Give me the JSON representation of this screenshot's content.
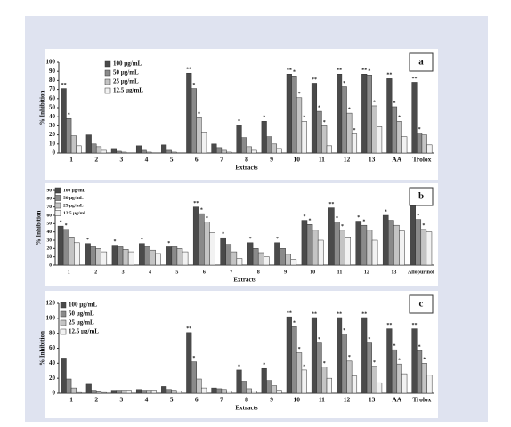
{
  "chart_data": [
    {
      "type": "bar",
      "panel_label": "a",
      "x_label": "Extracts",
      "y_label": "% Inhibition",
      "categories": [
        "1",
        "2",
        "3",
        "4",
        "5",
        "6",
        "7",
        "8",
        "9",
        "10",
        "11",
        "12",
        "13",
        "AA",
        "Trolox"
      ],
      "ylim": [
        0,
        100
      ],
      "yticks": [
        0,
        10,
        20,
        30,
        40,
        50,
        60,
        70,
        80,
        90,
        100
      ],
      "series": [
        {
          "name": "100 µg/mL",
          "color": "#4a4a4a",
          "values": [
            71,
            20,
            5,
            8,
            9,
            88,
            10,
            31,
            35,
            87,
            77,
            87,
            87,
            82,
            78
          ],
          "significance": [
            "**",
            null,
            null,
            null,
            null,
            "**",
            null,
            "*",
            "*",
            "**",
            "**",
            "**",
            "**",
            "**",
            "**"
          ]
        },
        {
          "name": "50 µg/mL",
          "color": "#8a8a8a",
          "values": [
            38,
            10,
            2,
            3,
            3,
            71,
            6,
            17,
            18,
            85,
            46,
            73,
            86,
            51,
            22
          ],
          "significance": [
            "*",
            null,
            null,
            null,
            null,
            "*",
            null,
            null,
            null,
            "*",
            "*",
            "*",
            "*",
            "*",
            "*"
          ]
        },
        {
          "name": "25 µg/mL",
          "color": "#c4c4c4",
          "values": [
            19,
            7,
            1,
            1,
            1,
            39,
            3,
            7,
            10,
            61,
            30,
            44,
            52,
            35,
            20
          ],
          "significance": [
            null,
            null,
            null,
            null,
            null,
            "*",
            null,
            null,
            null,
            "*",
            "*",
            "*",
            "*",
            "*",
            null
          ]
        },
        {
          "name": "12.5 µg/mL",
          "color": "#f2f2f2",
          "values": [
            8,
            3,
            0,
            0,
            0,
            23,
            1,
            3,
            5,
            35,
            8,
            21,
            29,
            18,
            9
          ],
          "significance": [
            null,
            null,
            null,
            null,
            null,
            null,
            null,
            null,
            null,
            "*",
            null,
            "*",
            null,
            null,
            null
          ]
        }
      ]
    },
    {
      "type": "bar",
      "panel_label": "b",
      "x_label": "Extracts",
      "y_label": "% Inhibition",
      "categories": [
        "1",
        "2",
        "3",
        "4",
        "5",
        "6",
        "7",
        "8",
        "9",
        "10",
        "11",
        "12",
        "13",
        "Allopurinol"
      ],
      "ylim": [
        0,
        90
      ],
      "yticks": [
        0,
        10,
        20,
        30,
        40,
        50,
        60,
        70,
        80,
        90
      ],
      "series": [
        {
          "name": "100 µg/mL",
          "color": "#4a4a4a",
          "values": [
            47,
            26,
            24,
            26,
            22,
            70,
            33,
            27,
            27,
            54,
            69,
            53,
            60,
            74
          ],
          "significance": [
            "*",
            "*",
            "*",
            "*",
            "*",
            "**",
            "*",
            "*",
            "*",
            "*",
            "**",
            "*",
            "*",
            "**"
          ]
        },
        {
          "name": "50 µg/mL",
          "color": "#8a8a8a",
          "values": [
            43,
            22,
            22,
            22,
            22,
            62,
            25,
            20,
            20,
            49,
            52,
            48,
            54,
            55
          ],
          "significance": [
            "*",
            null,
            null,
            null,
            null,
            "*",
            null,
            null,
            null,
            "*",
            "*",
            "*",
            null,
            "*"
          ]
        },
        {
          "name": "25 µg/mL",
          "color": "#c4c4c4",
          "values": [
            34,
            20,
            19,
            18,
            20,
            52,
            16,
            15,
            13,
            42,
            42,
            42,
            48,
            43
          ],
          "significance": [
            null,
            null,
            null,
            null,
            null,
            "*",
            null,
            null,
            null,
            null,
            "*",
            null,
            null,
            "*"
          ]
        },
        {
          "name": "12.5 µg/mL",
          "color": "#f2f2f2",
          "values": [
            27,
            16,
            16,
            14,
            16,
            39,
            8,
            10,
            7,
            30,
            34,
            30,
            41,
            40
          ],
          "significance": [
            null,
            null,
            null,
            null,
            null,
            null,
            null,
            null,
            null,
            null,
            null,
            null,
            null,
            null
          ]
        }
      ]
    },
    {
      "type": "bar",
      "panel_label": "c",
      "x_label": "Extracts",
      "y_label": "% Inhibition",
      "categories": [
        "1",
        "2",
        "3",
        "4",
        "5",
        "6",
        "7",
        "8",
        "9",
        "10",
        "11",
        "12",
        "13",
        "AA",
        "Trolox"
      ],
      "ylim": [
        0,
        120
      ],
      "yticks": [
        0,
        20,
        40,
        60,
        80,
        100,
        120
      ],
      "series": [
        {
          "name": "100 µg/mL",
          "color": "#4a4a4a",
          "values": [
            47,
            12,
            4,
            5,
            9,
            81,
            7,
            31,
            33,
            102,
            101,
            101,
            101,
            86,
            86
          ],
          "significance": [
            null,
            null,
            null,
            null,
            null,
            "**",
            null,
            "*",
            "*",
            "**",
            "**",
            "**",
            "**",
            "**",
            "**"
          ]
        },
        {
          "name": "50 µg/mL",
          "color": "#8a8a8a",
          "values": [
            19,
            4,
            4,
            4,
            5,
            42,
            6,
            16,
            17,
            89,
            67,
            79,
            67,
            58,
            57
          ],
          "significance": [
            null,
            null,
            null,
            null,
            null,
            "*",
            null,
            null,
            null,
            "*",
            "*",
            "*",
            "*",
            "*",
            "*"
          ]
        },
        {
          "name": "25 µg/mL",
          "color": "#c4c4c4",
          "values": [
            7,
            2,
            4,
            4,
            4,
            19,
            5,
            6,
            10,
            54,
            35,
            43,
            36,
            39,
            40
          ],
          "significance": [
            null,
            null,
            null,
            null,
            null,
            null,
            null,
            null,
            null,
            "*",
            "*",
            "*",
            "*",
            "*",
            "*"
          ]
        },
        {
          "name": "12.5 µg/mL",
          "color": "#f2f2f2",
          "values": [
            1,
            1,
            4,
            4,
            3,
            7,
            3,
            3,
            4,
            31,
            20,
            23,
            14,
            26,
            24
          ],
          "significance": [
            null,
            null,
            null,
            null,
            null,
            null,
            null,
            null,
            null,
            "*",
            null,
            null,
            null,
            null,
            null
          ]
        }
      ]
    }
  ]
}
